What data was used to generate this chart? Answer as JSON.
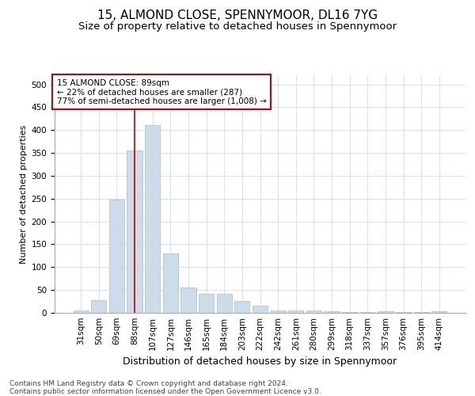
{
  "title1": "15, ALMOND CLOSE, SPENNYMOOR, DL16 7YG",
  "title2": "Size of property relative to detached houses in Spennymoor",
  "xlabel": "Distribution of detached houses by size in Spennymoor",
  "ylabel": "Number of detached properties",
  "categories": [
    "31sqm",
    "50sqm",
    "69sqm",
    "88sqm",
    "107sqm",
    "127sqm",
    "146sqm",
    "165sqm",
    "184sqm",
    "203sqm",
    "222sqm",
    "242sqm",
    "261sqm",
    "280sqm",
    "299sqm",
    "318sqm",
    "337sqm",
    "357sqm",
    "376sqm",
    "395sqm",
    "414sqm"
  ],
  "values": [
    5,
    28,
    248,
    355,
    410,
    130,
    55,
    42,
    42,
    26,
    16,
    5,
    5,
    5,
    3,
    1,
    1,
    3,
    1,
    1,
    3
  ],
  "bar_color": "#ccdce8",
  "bar_edge_color": "#aabccc",
  "grid_color": "#d8e0e8",
  "vline_color": "#cc0000",
  "vline_x_idx": 3,
  "annotation_text": "15 ALMOND CLOSE: 89sqm\n← 22% of detached houses are smaller (287)\n77% of semi-detached houses are larger (1,008) →",
  "annotation_box_facecolor": "#ffffff",
  "annotation_box_edgecolor": "#cc0000",
  "footer": "Contains HM Land Registry data © Crown copyright and database right 2024.\nContains public sector information licensed under the Open Government Licence v3.0.",
  "ylim": [
    0,
    520
  ],
  "yticks": [
    0,
    50,
    100,
    150,
    200,
    250,
    300,
    350,
    400,
    450,
    500
  ],
  "title1_fontsize": 11,
  "title2_fontsize": 9.5,
  "xlabel_fontsize": 9,
  "ylabel_fontsize": 8,
  "tick_fontsize": 7.5,
  "annotation_fontsize": 7.5,
  "footer_fontsize": 6.5
}
